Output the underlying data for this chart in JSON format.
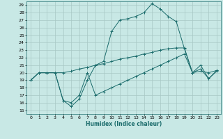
{
  "xlabel": "Humidex (Indice chaleur)",
  "xlim": [
    -0.5,
    23.5
  ],
  "ylim": [
    14.5,
    29.5
  ],
  "xticks": [
    0,
    1,
    2,
    3,
    4,
    5,
    6,
    7,
    8,
    9,
    10,
    11,
    12,
    13,
    14,
    15,
    16,
    17,
    18,
    19,
    20,
    21,
    22,
    23
  ],
  "yticks": [
    15,
    16,
    17,
    18,
    19,
    20,
    21,
    22,
    23,
    24,
    25,
    26,
    27,
    28,
    29
  ],
  "bg_color": "#c8e8e5",
  "line_color": "#1a6b6b",
  "grid_color": "#a8c8c5",
  "line1_x": [
    0,
    1,
    2,
    3,
    4,
    5,
    6,
    7,
    8,
    9,
    10,
    11,
    12,
    13,
    14,
    15,
    16,
    17,
    18,
    19,
    20,
    21,
    22,
    23
  ],
  "line1_y": [
    19,
    20,
    20,
    20,
    16.3,
    15.5,
    16.5,
    19.0,
    21.0,
    21.5,
    25.5,
    27.0,
    27.2,
    27.5,
    28.0,
    29.2,
    28.5,
    27.5,
    26.8,
    23.2,
    20.0,
    21.0,
    19.2,
    20.2
  ],
  "line2_x": [
    0,
    1,
    2,
    3,
    4,
    5,
    6,
    7,
    8,
    9,
    10,
    11,
    12,
    13,
    14,
    15,
    16,
    17,
    18,
    19,
    20,
    21,
    22,
    23
  ],
  "line2_y": [
    19,
    20,
    20,
    20,
    20.0,
    20.2,
    20.5,
    20.7,
    21.0,
    21.2,
    21.5,
    21.8,
    22.0,
    22.2,
    22.5,
    22.7,
    23.0,
    23.2,
    23.3,
    23.3,
    20.0,
    20.2,
    20.0,
    20.3
  ],
  "line3_x": [
    0,
    1,
    2,
    3,
    4,
    5,
    6,
    7,
    8,
    9,
    10,
    11,
    12,
    13,
    14,
    15,
    16,
    17,
    18,
    19,
    20,
    21,
    22,
    23
  ],
  "line3_y": [
    19,
    20,
    20,
    20,
    16.3,
    16.0,
    17.0,
    20.0,
    17.0,
    17.5,
    18.0,
    18.5,
    19.0,
    19.5,
    20.0,
    20.5,
    21.0,
    21.5,
    22.0,
    22.5,
    20.0,
    20.5,
    19.2,
    20.3
  ]
}
